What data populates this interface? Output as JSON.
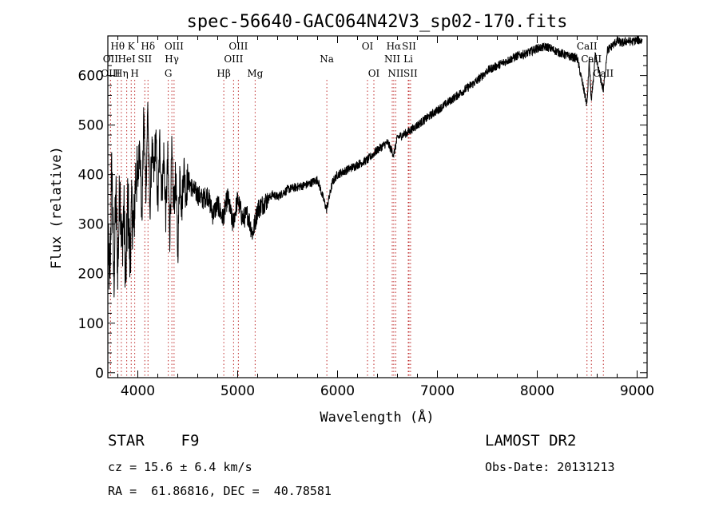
{
  "chart_data": {
    "type": "line",
    "title": "spec-56640-GAC064N42V3_sp02-170.fits",
    "xlabel": "Wavelength (Å)",
    "ylabel": "Flux (relative)",
    "xlim": [
      3700,
      9100
    ],
    "ylim": [
      -10,
      680
    ],
    "xticks": [
      4000,
      5000,
      6000,
      7000,
      8000,
      9000
    ],
    "yticks": [
      0,
      100,
      200,
      300,
      400,
      500,
      600
    ],
    "grid": false,
    "line_color": "#000000",
    "marker_line_color": "#c03030",
    "spectrum_x": [
      3700,
      3720,
      3740,
      3760,
      3780,
      3800,
      3820,
      3840,
      3860,
      3880,
      3900,
      3920,
      3940,
      3960,
      3980,
      4000,
      4020,
      4040,
      4060,
      4080,
      4100,
      4120,
      4140,
      4160,
      4180,
      4200,
      4220,
      4240,
      4260,
      4280,
      4300,
      4320,
      4340,
      4360,
      4380,
      4400,
      4420,
      4440,
      4460,
      4480,
      4500,
      4550,
      4600,
      4650,
      4700,
      4750,
      4800,
      4850,
      4900,
      4950,
      5000,
      5050,
      5100,
      5150,
      5200,
      5250,
      5300,
      5350,
      5400,
      5500,
      5600,
      5700,
      5800,
      5890,
      5950,
      6000,
      6100,
      6200,
      6300,
      6400,
      6500,
      6563,
      6600,
      6700,
      6800,
      6900,
      7000,
      7100,
      7200,
      7300,
      7400,
      7500,
      7600,
      7700,
      7800,
      7900,
      8000,
      8100,
      8200,
      8300,
      8400,
      8498,
      8520,
      8542,
      8580,
      8662,
      8700,
      8750,
      8800,
      8850,
      8900,
      8950,
      9000,
      9050
    ],
    "spectrum_y": [
      250,
      190,
      420,
      180,
      360,
      210,
      390,
      250,
      330,
      180,
      360,
      230,
      330,
      290,
      410,
      380,
      480,
      300,
      520,
      360,
      540,
      320,
      450,
      400,
      480,
      330,
      470,
      360,
      440,
      320,
      430,
      280,
      440,
      330,
      400,
      240,
      410,
      330,
      420,
      360,
      390,
      370,
      360,
      350,
      360,
      320,
      340,
      310,
      355,
      300,
      350,
      310,
      320,
      280,
      330,
      340,
      350,
      360,
      355,
      370,
      375,
      380,
      390,
      330,
      385,
      400,
      410,
      420,
      430,
      450,
      465,
      440,
      475,
      485,
      500,
      515,
      530,
      545,
      560,
      575,
      590,
      610,
      620,
      630,
      640,
      645,
      655,
      658,
      648,
      640,
      635,
      540,
      630,
      545,
      640,
      570,
      650,
      660,
      670,
      665,
      670,
      668,
      672,
      670
    ],
    "line_markers": [
      {
        "label": "Hθ",
        "x": 3798,
        "row": 0
      },
      {
        "label": "OII",
        "x": 3727,
        "row": 1
      },
      {
        "label": "OIII",
        "x": 3727,
        "row": 2
      },
      {
        "label": "K",
        "x": 3934,
        "row": 0
      },
      {
        "label": "HeI",
        "x": 3889,
        "row": 1
      },
      {
        "label": "Hη",
        "x": 3835,
        "row": 2
      },
      {
        "label": "H",
        "x": 3969,
        "row": 2
      },
      {
        "label": "SII",
        "x": 4070,
        "row": 1
      },
      {
        "label": "Hδ",
        "x": 4102,
        "row": 0
      },
      {
        "label": "OIII",
        "x": 4363,
        "row": 0
      },
      {
        "label": "Hγ",
        "x": 4341,
        "row": 1
      },
      {
        "label": "G",
        "x": 4305,
        "row": 2
      },
      {
        "label": "Hβ",
        "x": 4861,
        "row": 2
      },
      {
        "label": "OIII",
        "x": 5007,
        "row": 0
      },
      {
        "label": "OIII",
        "x": 4959,
        "row": 1
      },
      {
        "label": "Mg",
        "x": 5175,
        "row": 2
      },
      {
        "label": "Na",
        "x": 5893,
        "row": 1
      },
      {
        "label": "OI",
        "x": 6300,
        "row": 0
      },
      {
        "label": "OI",
        "x": 6364,
        "row": 2
      },
      {
        "label": "Hα",
        "x": 6563,
        "row": 0
      },
      {
        "label": "SII",
        "x": 6716,
        "row": 0
      },
      {
        "label": "NII",
        "x": 6548,
        "row": 1
      },
      {
        "label": "Li",
        "x": 6708,
        "row": 1
      },
      {
        "label": "NII",
        "x": 6583,
        "row": 2
      },
      {
        "label": "SII",
        "x": 6731,
        "row": 2
      },
      {
        "label": "CaII",
        "x": 8498,
        "row": 0
      },
      {
        "label": "CaII",
        "x": 8542,
        "row": 1
      },
      {
        "label": "CaII",
        "x": 8662,
        "row": 2
      }
    ]
  },
  "info": {
    "object_class": "STAR    F9",
    "survey": "LAMOST DR2",
    "cz": "cz = 15.6 ± 6.4 km/s",
    "obs_date": "Obs-Date: 20131213",
    "radec": "RA =  61.86816, DEC =  40.78581"
  }
}
